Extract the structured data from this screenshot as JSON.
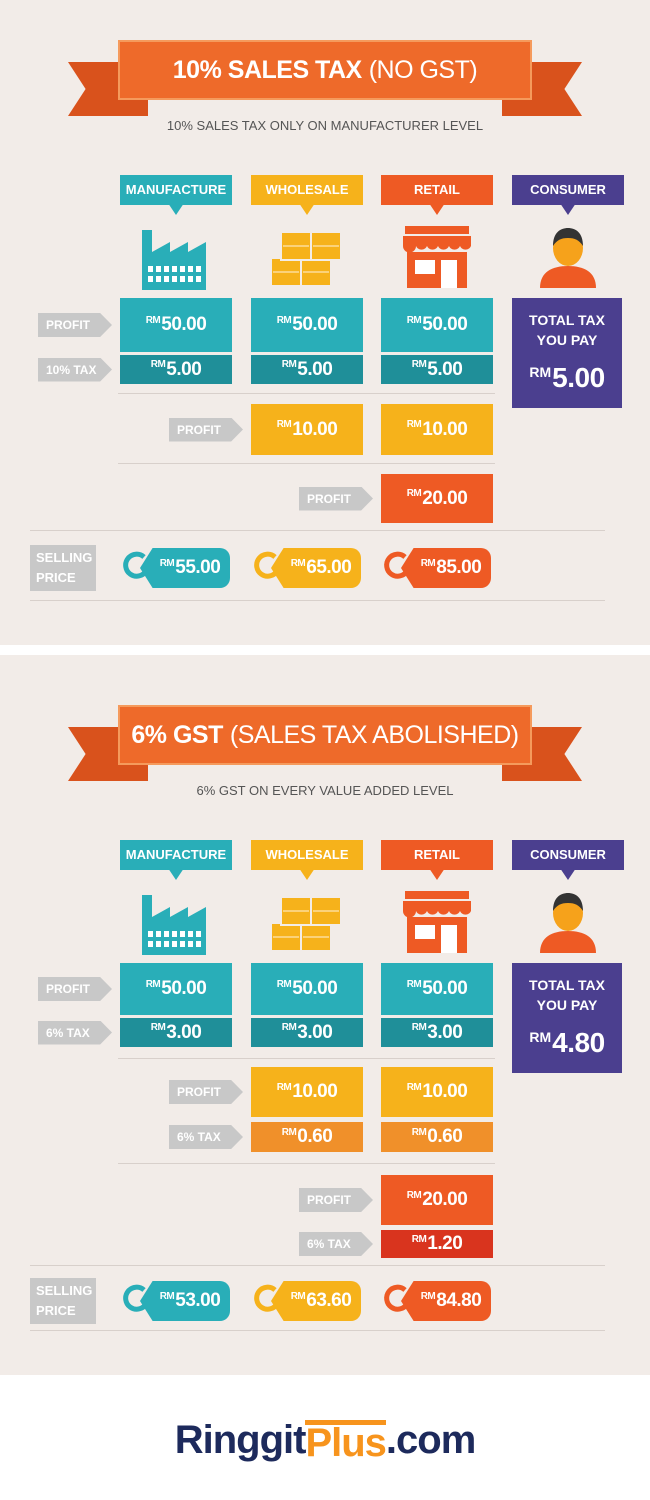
{
  "sections": [
    {
      "title_bold": "10% SALES TAX",
      "title_light": "(NO GST)",
      "subtitle": "10% SALES TAX ONLY ON MANUFACTURER LEVEL",
      "columns": [
        "MANUFACTURE",
        "WHOLESALE",
        "RETAIL",
        "CONSUMER"
      ],
      "rows": [
        {
          "label": "PROFIT",
          "cells": [
            {
              "currency": "RM",
              "amount": "50.00"
            },
            {
              "currency": "RM",
              "amount": "50.00"
            },
            {
              "currency": "RM",
              "amount": "50.00"
            }
          ]
        },
        {
          "label": "10% TAX",
          "cells": [
            {
              "currency": "RM",
              "amount": "5.00"
            },
            {
              "currency": "RM",
              "amount": "5.00"
            },
            {
              "currency": "RM",
              "amount": "5.00"
            }
          ]
        },
        {
          "label": "PROFIT",
          "cells": [
            {
              "currency": "RM",
              "amount": "10.00"
            },
            {
              "currency": "RM",
              "amount": "10.00"
            }
          ]
        },
        {
          "label": "PROFIT",
          "cells": [
            {
              "currency": "RM",
              "amount": "20.00"
            }
          ]
        }
      ],
      "selling_price": {
        "label": "SELLING PRICE",
        "cells": [
          {
            "currency": "RM",
            "amount": "55.00"
          },
          {
            "currency": "RM",
            "amount": "65.00"
          },
          {
            "currency": "RM",
            "amount": "85.00"
          }
        ]
      },
      "consumer": {
        "label": "TOTAL TAX YOU PAY",
        "currency": "RM",
        "amount": "5.00"
      }
    },
    {
      "title_bold": "6% GST",
      "title_light": "(SALES TAX ABOLISHED)",
      "subtitle": "6% GST ON EVERY VALUE ADDED LEVEL",
      "columns": [
        "MANUFACTURE",
        "WHOLESALE",
        "RETAIL",
        "CONSUMER"
      ],
      "rows": [
        {
          "label": "PROFIT",
          "cells": [
            {
              "currency": "RM",
              "amount": "50.00"
            },
            {
              "currency": "RM",
              "amount": "50.00"
            },
            {
              "currency": "RM",
              "amount": "50.00"
            }
          ]
        },
        {
          "label": "6% TAX",
          "cells": [
            {
              "currency": "RM",
              "amount": "3.00"
            },
            {
              "currency": "RM",
              "amount": "3.00"
            },
            {
              "currency": "RM",
              "amount": "3.00"
            }
          ]
        },
        {
          "label": "PROFIT",
          "cells": [
            {
              "currency": "RM",
              "amount": "10.00"
            },
            {
              "currency": "RM",
              "amount": "10.00"
            }
          ]
        },
        {
          "label": "6% TAX",
          "cells": [
            {
              "currency": "RM",
              "amount": "0.60"
            },
            {
              "currency": "RM",
              "amount": "0.60"
            }
          ]
        },
        {
          "label": "PROFIT",
          "cells": [
            {
              "currency": "RM",
              "amount": "20.00"
            }
          ]
        },
        {
          "label": "6% TAX",
          "cells": [
            {
              "currency": "RM",
              "amount": "1.20"
            }
          ]
        }
      ],
      "selling_price": {
        "label": "SELLING PRICE",
        "cells": [
          {
            "currency": "RM",
            "amount": "53.00"
          },
          {
            "currency": "RM",
            "amount": "63.60"
          },
          {
            "currency": "RM",
            "amount": "84.80"
          }
        ]
      },
      "consumer": {
        "label": "TOTAL TAX YOU PAY",
        "currency": "RM",
        "amount": "4.80"
      }
    }
  ],
  "footer": {
    "logo": [
      "Ringgit",
      "Plus",
      ".com"
    ]
  }
}
